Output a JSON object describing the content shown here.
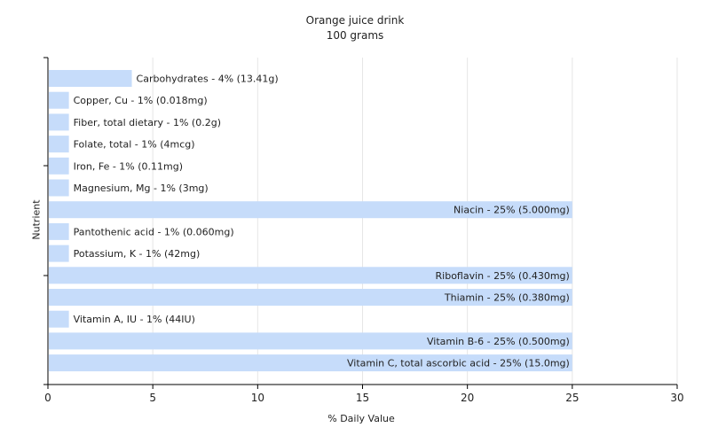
{
  "chart_data": {
    "type": "bar",
    "orientation": "horizontal",
    "title": "Orange juice drink",
    "subtitle": "100 grams",
    "xlabel": "% Daily Value",
    "ylabel": "Nutrient",
    "xlim": [
      0,
      30
    ],
    "xticks": [
      0,
      5,
      10,
      15,
      20,
      25,
      30
    ],
    "grid": true,
    "bar_color": "#c6dcfa",
    "categories": [
      "Carbohydrates",
      "Copper, Cu",
      "Fiber, total dietary",
      "Folate, total",
      "Iron, Fe",
      "Magnesium, Mg",
      "Niacin",
      "Pantothenic acid",
      "Potassium, K",
      "Riboflavin",
      "Thiamin",
      "Vitamin A, IU",
      "Vitamin B-6",
      "Vitamin C, total ascorbic acid"
    ],
    "values": [
      4,
      1,
      1,
      1,
      1,
      1,
      25,
      1,
      1,
      25,
      25,
      1,
      25,
      25
    ],
    "labels": [
      "Carbohydrates - 4% (13.41g)",
      "Copper, Cu - 1% (0.018mg)",
      "Fiber, total dietary - 1% (0.2g)",
      "Folate, total - 1% (4mcg)",
      "Iron, Fe - 1% (0.11mg)",
      "Magnesium, Mg - 1% (3mg)",
      "Niacin - 25% (5.000mg)",
      "Pantothenic acid - 1% (0.060mg)",
      "Potassium, K - 1% (42mg)",
      "Riboflavin - 25% (0.430mg)",
      "Thiamin - 25% (0.380mg)",
      "Vitamin A, IU - 1% (44IU)",
      "Vitamin B-6 - 25% (0.500mg)",
      "Vitamin C, total ascorbic acid - 25% (15.0mg)"
    ]
  }
}
